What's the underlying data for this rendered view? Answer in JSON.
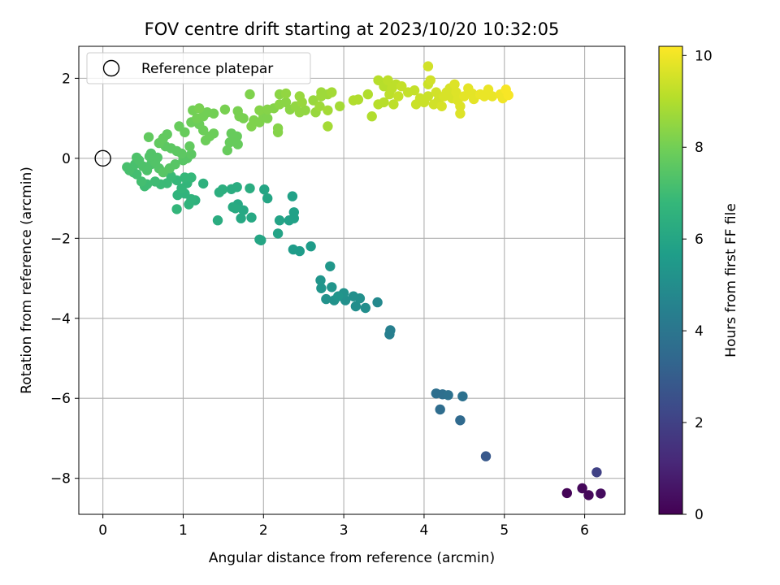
{
  "chart_data": {
    "type": "scatter",
    "title": "FOV centre drift starting at 2023/10/20 10:32:05",
    "xlabel": "Angular distance from reference (arcmin)",
    "ylabel": "Rotation from reference (arcmin)",
    "xlim": [
      -0.3,
      6.5
    ],
    "ylim": [
      -8.9,
      2.8
    ],
    "xticks": [
      0,
      1,
      2,
      3,
      4,
      5,
      6
    ],
    "yticks": [
      -8,
      -6,
      -4,
      -2,
      0,
      2
    ],
    "xtick_labels": [
      "0",
      "1",
      "2",
      "3",
      "4",
      "5",
      "6"
    ],
    "ytick_labels": [
      "−8",
      "−6",
      "−4",
      "−2",
      "0",
      "2"
    ],
    "grid": true,
    "legend": {
      "location": "top-left",
      "entries": [
        {
          "label": "Reference platepar",
          "marker": "open-circle"
        }
      ]
    },
    "reference_point": {
      "x": 0,
      "y": 0
    },
    "colorbar": {
      "label": "Hours from first FF file",
      "range": [
        0,
        10.2
      ],
      "ticks": [
        0,
        2,
        4,
        6,
        8,
        10
      ],
      "tick_labels": [
        "0",
        "2",
        "4",
        "6",
        "8",
        "10"
      ],
      "colormap": "viridis",
      "colormap_stops": [
        "#440154",
        "#482878",
        "#3e4989",
        "#31688e",
        "#26828e",
        "#1f9e89",
        "#35b779",
        "#6ece58",
        "#b5de2b",
        "#fde725"
      ]
    },
    "points": [
      [
        5.78,
        -8.37,
        0.1
      ],
      [
        5.97,
        -8.25,
        0.2
      ],
      [
        6.05,
        -8.42,
        0.2
      ],
      [
        6.2,
        -8.38,
        0.3
      ],
      [
        6.15,
        -7.85,
        2.0
      ],
      [
        4.77,
        -7.45,
        2.8
      ],
      [
        4.45,
        -6.55,
        3.5
      ],
      [
        4.2,
        -6.28,
        3.6
      ],
      [
        4.15,
        -5.88,
        3.7
      ],
      [
        4.23,
        -5.9,
        3.7
      ],
      [
        4.3,
        -5.92,
        3.8
      ],
      [
        4.48,
        -5.95,
        3.8
      ],
      [
        3.57,
        -4.4,
        4.4
      ],
      [
        3.58,
        -4.3,
        4.4
      ],
      [
        3.42,
        -3.6,
        4.8
      ],
      [
        3.27,
        -3.74,
        5.0
      ],
      [
        3.15,
        -3.7,
        5.0
      ],
      [
        3.2,
        -3.5,
        5.1
      ],
      [
        3.12,
        -3.45,
        5.1
      ],
      [
        3.02,
        -3.55,
        5.1
      ],
      [
        3.0,
        -3.37,
        5.2
      ],
      [
        2.88,
        -3.55,
        5.2
      ],
      [
        2.78,
        -3.52,
        5.2
      ],
      [
        2.72,
        -3.25,
        5.3
      ],
      [
        2.71,
        -3.05,
        5.3
      ],
      [
        2.85,
        -3.22,
        5.3
      ],
      [
        2.93,
        -3.45,
        5.3
      ],
      [
        2.83,
        -2.7,
        5.4
      ],
      [
        2.59,
        -2.2,
        5.6
      ],
      [
        2.45,
        -2.32,
        5.6
      ],
      [
        2.37,
        -2.28,
        5.6
      ],
      [
        2.38,
        -1.35,
        5.8
      ],
      [
        2.38,
        -1.5,
        5.8
      ],
      [
        2.32,
        -1.55,
        5.8
      ],
      [
        2.36,
        -0.95,
        5.8
      ],
      [
        2.2,
        -1.55,
        5.9
      ],
      [
        2.18,
        -1.88,
        5.9
      ],
      [
        2.05,
        -1.0,
        6.0
      ],
      [
        2.01,
        -0.78,
        6.0
      ],
      [
        1.97,
        -2.05,
        6.0
      ],
      [
        1.95,
        -2.03,
        6.0
      ],
      [
        1.85,
        -1.48,
        6.1
      ],
      [
        1.72,
        -1.5,
        6.1
      ],
      [
        1.75,
        -1.3,
        6.1
      ],
      [
        1.68,
        -1.15,
        6.1
      ],
      [
        1.65,
        -1.25,
        6.2
      ],
      [
        1.62,
        -1.22,
        6.2
      ],
      [
        1.43,
        -1.55,
        6.3
      ],
      [
        1.83,
        -0.75,
        6.3
      ],
      [
        1.67,
        -0.72,
        6.3
      ],
      [
        1.6,
        -0.77,
        6.3
      ],
      [
        1.49,
        -0.78,
        6.4
      ],
      [
        1.45,
        -0.85,
        6.4
      ],
      [
        1.25,
        -0.63,
        6.5
      ],
      [
        1.15,
        -1.05,
        6.5
      ],
      [
        1.07,
        -1.15,
        6.6
      ],
      [
        1.1,
        -1.02,
        6.6
      ],
      [
        1.02,
        -0.88,
        6.6
      ],
      [
        0.93,
        -0.92,
        6.6
      ],
      [
        0.92,
        -1.27,
        6.7
      ],
      [
        1.05,
        -0.62,
        6.7
      ],
      [
        0.98,
        -0.75,
        6.7
      ],
      [
        1.1,
        -0.48,
        6.8
      ],
      [
        1.02,
        -0.48,
        6.8
      ],
      [
        0.92,
        -0.55,
        6.8
      ],
      [
        0.85,
        -0.45,
        6.9
      ],
      [
        0.8,
        -0.62,
        6.9
      ],
      [
        0.72,
        -0.65,
        6.9
      ],
      [
        0.65,
        -0.58,
        7.0
      ],
      [
        0.55,
        -0.65,
        7.0
      ],
      [
        0.52,
        -0.7,
        7.0
      ],
      [
        0.48,
        -0.58,
        7.1
      ],
      [
        0.42,
        -0.4,
        7.1
      ],
      [
        0.38,
        -0.35,
        7.1
      ],
      [
        0.33,
        -0.3,
        7.2
      ],
      [
        0.3,
        -0.22,
        7.2
      ],
      [
        0.4,
        -0.15,
        7.2
      ],
      [
        0.45,
        -0.05,
        7.3
      ],
      [
        0.42,
        0.02,
        7.3
      ],
      [
        0.5,
        -0.2,
        7.3
      ],
      [
        0.55,
        -0.3,
        7.3
      ],
      [
        0.6,
        -0.15,
        7.3
      ],
      [
        0.65,
        -0.1,
        7.4
      ],
      [
        0.58,
        0.05,
        7.4
      ],
      [
        0.6,
        0.12,
        7.4
      ],
      [
        0.68,
        0.02,
        7.4
      ],
      [
        0.7,
        -0.25,
        7.4
      ],
      [
        0.75,
        -0.35,
        7.5
      ],
      [
        0.83,
        -0.25,
        7.5
      ],
      [
        0.9,
        -0.15,
        7.5
      ],
      [
        1.0,
        -0.05,
        7.5
      ],
      [
        1.05,
        0.0,
        7.5
      ],
      [
        1.1,
        0.1,
        7.6
      ],
      [
        0.98,
        0.12,
        7.6
      ],
      [
        0.92,
        0.18,
        7.6
      ],
      [
        0.85,
        0.25,
        7.6
      ],
      [
        0.78,
        0.3,
        7.6
      ],
      [
        0.7,
        0.38,
        7.7
      ],
      [
        0.75,
        0.5,
        7.7
      ],
      [
        0.8,
        0.6,
        7.7
      ],
      [
        0.57,
        0.53,
        7.7
      ],
      [
        1.08,
        0.3,
        7.7
      ],
      [
        1.02,
        0.65,
        7.8
      ],
      [
        0.95,
        0.8,
        7.8
      ],
      [
        1.55,
        0.2,
        7.8
      ],
      [
        1.58,
        0.4,
        7.8
      ],
      [
        1.68,
        0.35,
        7.8
      ],
      [
        1.6,
        0.62,
        7.8
      ],
      [
        1.67,
        0.55,
        7.8
      ],
      [
        1.28,
        0.45,
        7.9
      ],
      [
        1.33,
        0.55,
        7.9
      ],
      [
        1.25,
        0.7,
        7.9
      ],
      [
        1.38,
        0.62,
        7.9
      ],
      [
        1.2,
        0.85,
        7.9
      ],
      [
        1.1,
        0.9,
        7.9
      ],
      [
        1.17,
        1.0,
        8.0
      ],
      [
        1.25,
        1.05,
        8.0
      ],
      [
        1.3,
        1.15,
        8.0
      ],
      [
        1.38,
        1.12,
        8.0
      ],
      [
        1.12,
        1.2,
        8.0
      ],
      [
        1.2,
        1.25,
        8.1
      ],
      [
        1.52,
        1.22,
        8.1
      ],
      [
        1.68,
        1.18,
        8.1
      ],
      [
        1.7,
        1.05,
        8.1
      ],
      [
        1.75,
        1.0,
        8.1
      ],
      [
        1.85,
        0.8,
        8.2
      ],
      [
        1.88,
        0.95,
        8.2
      ],
      [
        1.95,
        0.9,
        8.2
      ],
      [
        2.0,
        1.05,
        8.2
      ],
      [
        2.05,
        1.0,
        8.2
      ],
      [
        1.83,
        1.6,
        8.2
      ],
      [
        1.95,
        1.2,
        8.3
      ],
      [
        2.05,
        1.22,
        8.3
      ],
      [
        2.13,
        1.25,
        8.3
      ],
      [
        2.18,
        0.75,
        8.3
      ],
      [
        2.18,
        0.65,
        8.3
      ],
      [
        2.2,
        1.35,
        8.4
      ],
      [
        2.28,
        1.4,
        8.4
      ],
      [
        2.33,
        1.22,
        8.4
      ],
      [
        2.2,
        1.6,
        8.4
      ],
      [
        2.28,
        1.62,
        8.5
      ],
      [
        2.4,
        1.3,
        8.5
      ],
      [
        2.45,
        1.15,
        8.5
      ],
      [
        2.52,
        1.2,
        8.5
      ],
      [
        2.48,
        1.4,
        8.6
      ],
      [
        2.45,
        1.55,
        8.6
      ],
      [
        2.62,
        1.45,
        8.6
      ],
      [
        2.65,
        1.15,
        8.6
      ],
      [
        2.7,
        1.3,
        8.7
      ],
      [
        2.72,
        1.55,
        8.7
      ],
      [
        2.72,
        1.65,
        8.7
      ],
      [
        2.8,
        1.6,
        8.7
      ],
      [
        2.85,
        1.65,
        8.8
      ],
      [
        2.8,
        1.2,
        8.8
      ],
      [
        2.95,
        1.3,
        8.8
      ],
      [
        2.8,
        0.8,
        8.8
      ],
      [
        3.12,
        1.45,
        9.0
      ],
      [
        3.18,
        1.47,
        9.0
      ],
      [
        3.3,
        1.6,
        9.0
      ],
      [
        3.35,
        1.05,
        9.0
      ],
      [
        3.43,
        1.35,
        9.1
      ],
      [
        3.43,
        1.95,
        9.1
      ],
      [
        3.5,
        1.8,
        9.1
      ],
      [
        3.5,
        1.4,
        9.1
      ],
      [
        3.55,
        1.95,
        9.2
      ],
      [
        3.57,
        1.6,
        9.2
      ],
      [
        3.6,
        1.75,
        9.2
      ],
      [
        3.65,
        1.85,
        9.2
      ],
      [
        3.62,
        1.35,
        9.2
      ],
      [
        3.68,
        1.55,
        9.3
      ],
      [
        3.72,
        1.8,
        9.3
      ],
      [
        3.8,
        1.65,
        9.3
      ],
      [
        3.88,
        1.7,
        9.3
      ],
      [
        3.95,
        1.5,
        9.4
      ],
      [
        3.9,
        1.35,
        9.4
      ],
      [
        4.0,
        1.4,
        9.4
      ],
      [
        4.05,
        1.55,
        9.4
      ],
      [
        4.05,
        1.85,
        9.4
      ],
      [
        4.05,
        2.3,
        9.5
      ],
      [
        4.08,
        1.95,
        9.5
      ],
      [
        4.15,
        1.65,
        9.5
      ],
      [
        4.12,
        1.35,
        9.5
      ],
      [
        4.18,
        1.45,
        9.5
      ],
      [
        4.22,
        1.3,
        9.6
      ],
      [
        4.25,
        1.55,
        9.6
      ],
      [
        4.28,
        1.65,
        9.6
      ],
      [
        4.32,
        1.75,
        9.6
      ],
      [
        4.35,
        1.5,
        9.6
      ],
      [
        4.38,
        1.85,
        9.7
      ],
      [
        4.4,
        1.65,
        9.7
      ],
      [
        4.42,
        1.45,
        9.7
      ],
      [
        4.45,
        1.3,
        9.7
      ],
      [
        4.45,
        1.12,
        9.7
      ],
      [
        4.5,
        1.55,
        9.8
      ],
      [
        4.55,
        1.75,
        9.8
      ],
      [
        4.6,
        1.62,
        9.8
      ],
      [
        4.62,
        1.48,
        9.8
      ],
      [
        4.7,
        1.6,
        9.9
      ],
      [
        4.75,
        1.55,
        9.9
      ],
      [
        4.8,
        1.72,
        9.9
      ],
      [
        4.85,
        1.55,
        9.9
      ],
      [
        4.95,
        1.6,
        10.0
      ],
      [
        4.98,
        1.5,
        10.0
      ],
      [
        5.02,
        1.72,
        10.1
      ],
      [
        5.05,
        1.58,
        10.1
      ]
    ]
  }
}
